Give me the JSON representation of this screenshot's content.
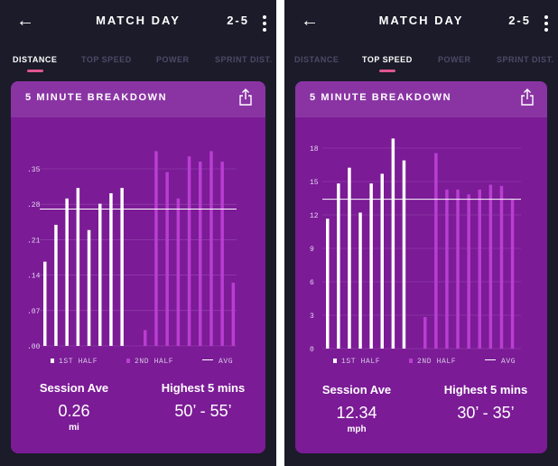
{
  "screens": [
    {
      "header": {
        "title": "MATCH DAY",
        "score": "2-5",
        "back_icon": "arrow-left-icon",
        "menu_icon": "kebab-menu-icon"
      },
      "tabs": [
        {
          "label": "DISTANCE",
          "active": true
        },
        {
          "label": "TOP SPEED",
          "active": false
        },
        {
          "label": "POWER",
          "active": false
        },
        {
          "label": "SPRINT DIST.",
          "active": false
        }
      ],
      "card": {
        "title": "5 MINUTE BREAKDOWN",
        "share_icon": "share-icon"
      },
      "legend": {
        "first_half": "1ST HALF",
        "second_half": "2ND HALF",
        "avg": "AVG"
      },
      "stats": {
        "session_label": "Session Ave",
        "session_value": "0.26",
        "session_unit": "mi",
        "highest_label": "Highest 5 mins",
        "highest_value": "50’ - 55’"
      },
      "colors": {
        "first_half": "#ffffff",
        "second_half": "#b93ed1",
        "avg": "#ffffff",
        "card": "#7b1b96",
        "accent": "#e0568f"
      },
      "chart_data": {
        "type": "bar",
        "y_ticks": [
          ".00",
          ".07",
          ".14",
          ".21",
          ".28",
          ".35"
        ],
        "ylim": [
          0,
          0.41
        ],
        "grid": true,
        "legend_position": "bottom",
        "avg": 0.26,
        "series": [
          {
            "name": "1ST HALF",
            "values": [
              0.16,
              0.23,
              0.28,
              0.3,
              0.22,
              0.27,
              0.29,
              0.3
            ]
          },
          {
            "name": "2ND HALF",
            "values": [
              0.03,
              0.37,
              0.33,
              0.28,
              0.36,
              0.35,
              0.37,
              0.35,
              0.12
            ]
          }
        ]
      }
    },
    {
      "header": {
        "title": "MATCH DAY",
        "score": "2-5",
        "back_icon": "arrow-left-icon",
        "menu_icon": "kebab-menu-icon"
      },
      "tabs": [
        {
          "label": "DISTANCE",
          "active": false
        },
        {
          "label": "TOP SPEED",
          "active": true
        },
        {
          "label": "POWER",
          "active": false
        },
        {
          "label": "SPRINT DIST.",
          "active": false
        }
      ],
      "card": {
        "title": "5 MINUTE BREAKDOWN",
        "share_icon": "share-icon"
      },
      "legend": {
        "first_half": "1ST HALF",
        "second_half": "2ND HALF",
        "avg": "AVG"
      },
      "stats": {
        "session_label": "Session Ave",
        "session_value": "12.34",
        "session_unit": "mph",
        "highest_label": "Highest 5 mins",
        "highest_value": "30’ - 35’"
      },
      "colors": {
        "first_half": "#ffffff",
        "second_half": "#b93ed1",
        "avg": "#ffffff",
        "card": "#7b1b96",
        "accent": "#e0568f"
      },
      "chart_data": {
        "type": "bar",
        "y_ticks": [
          "0",
          "3",
          "6",
          "9",
          "12",
          "15",
          "18"
        ],
        "ylim": [
          0,
          18
        ],
        "grid": true,
        "legend_position": "bottom",
        "avg": 12.3,
        "series": [
          {
            "name": "1ST HALF",
            "values": [
              10.7,
              13.6,
              14.9,
              11.2,
              13.6,
              14.4,
              17.3,
              15.5
            ]
          },
          {
            "name": "2ND HALF",
            "values": [
              2.6,
              16.1,
              13.1,
              13.1,
              12.7,
              13.1,
              13.5,
              13.4,
              12.3
            ]
          }
        ]
      }
    }
  ]
}
